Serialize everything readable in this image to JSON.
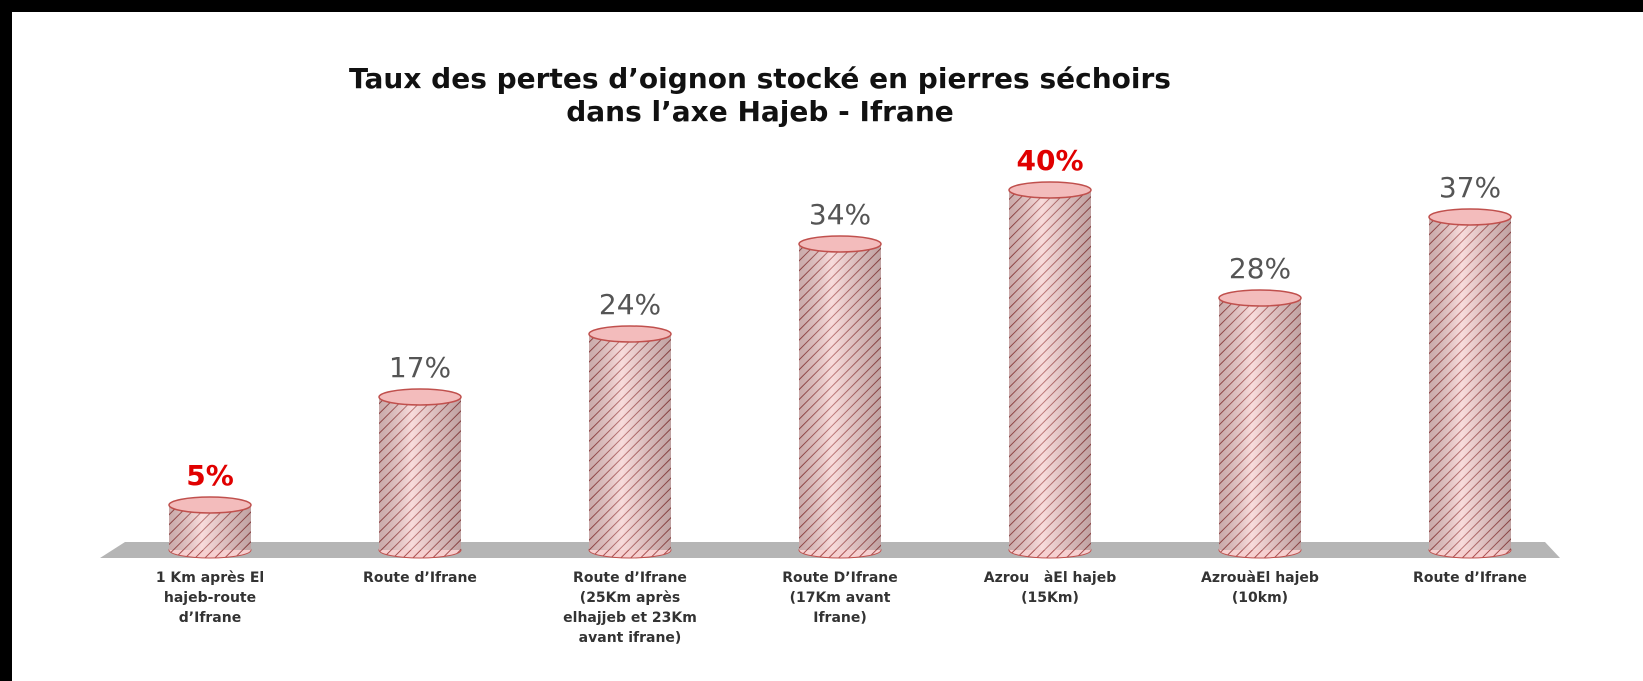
{
  "chart_data": {
    "type": "bar",
    "title": "Taux des pertes d’oignon stocké en pierres séchoirs",
    "subtitle": "dans l’axe Hajeb - Ifrane",
    "categories": [
      "1 Km après El\nhajeb-route\nd’Ifrane",
      "Route d’Ifrane",
      "Route d’Ifrane\n(25Km après\nelhajjeb et 23Km\navant ifrane)",
      "Route D’Ifrane\n(17Km avant\nIfrane)",
      "Azrou   àEl hajeb\n(15Km)",
      "AzrouàEl hajeb\n(10km)",
      "Route d’Ifrane"
    ],
    "values": [
      5,
      17,
      24,
      34,
      40,
      28,
      37
    ],
    "value_labels": [
      "5%",
      "17%",
      "24%",
      "34%",
      "40%",
      "28%",
      "37%"
    ],
    "label_colors": [
      "#e00000",
      "#555555",
      "#555555",
      "#555555",
      "#e00000",
      "#555555",
      "#555555"
    ],
    "color": "#c0504d",
    "ylim": [
      0,
      40
    ]
  }
}
